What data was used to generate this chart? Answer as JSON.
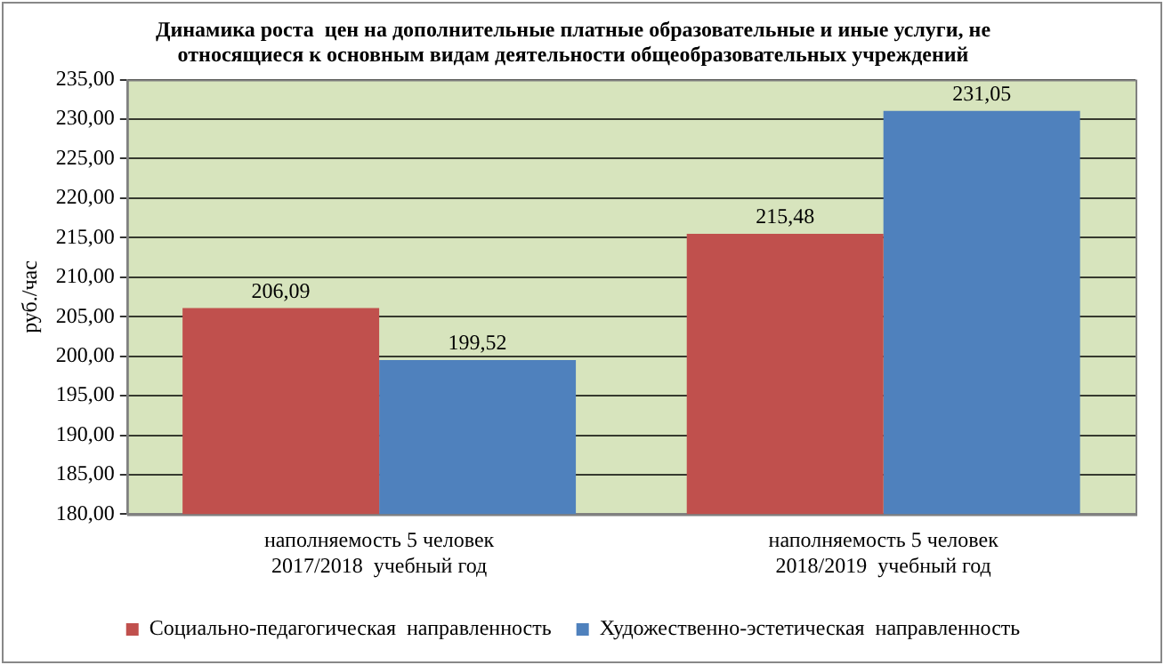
{
  "chart_data": {
    "type": "bar",
    "title": "Динамика роста  цен на дополнительные платные образовательные и иные услуги, не\nотносящиеся к основным видам деятельности общеобразовательных учреждений",
    "ylabel": "руб./час",
    "categories": [
      "наполняемость 5 человек\n2017/2018  учебный год",
      "наполняемость 5 человек\n2018/2019  учебный год"
    ],
    "series": [
      {
        "name": "Социально-педагогическая  направленность",
        "color": "#c0504d",
        "values": [
          206.09,
          215.48
        ],
        "value_labels": [
          "206,09",
          "215,48"
        ]
      },
      {
        "name": "Художественно-эстетическая  направленность",
        "color": "#4f81bd",
        "values": [
          199.52,
          231.05
        ],
        "value_labels": [
          "199,52",
          "231,05"
        ]
      }
    ],
    "ylim": [
      180,
      235
    ],
    "yticks": [
      {
        "value": 180,
        "label": "180,00"
      },
      {
        "value": 185,
        "label": "185,00"
      },
      {
        "value": 190,
        "label": "190,00"
      },
      {
        "value": 195,
        "label": "195,00"
      },
      {
        "value": 200,
        "label": "200,00"
      },
      {
        "value": 205,
        "label": "205,00"
      },
      {
        "value": 210,
        "label": "210,00"
      },
      {
        "value": 215,
        "label": "215,00"
      },
      {
        "value": 220,
        "label": "220,00"
      },
      {
        "value": 225,
        "label": "225,00"
      },
      {
        "value": 230,
        "label": "230,00"
      },
      {
        "value": 235,
        "label": "235,00"
      }
    ],
    "grid": "y",
    "legend": "bottom"
  }
}
